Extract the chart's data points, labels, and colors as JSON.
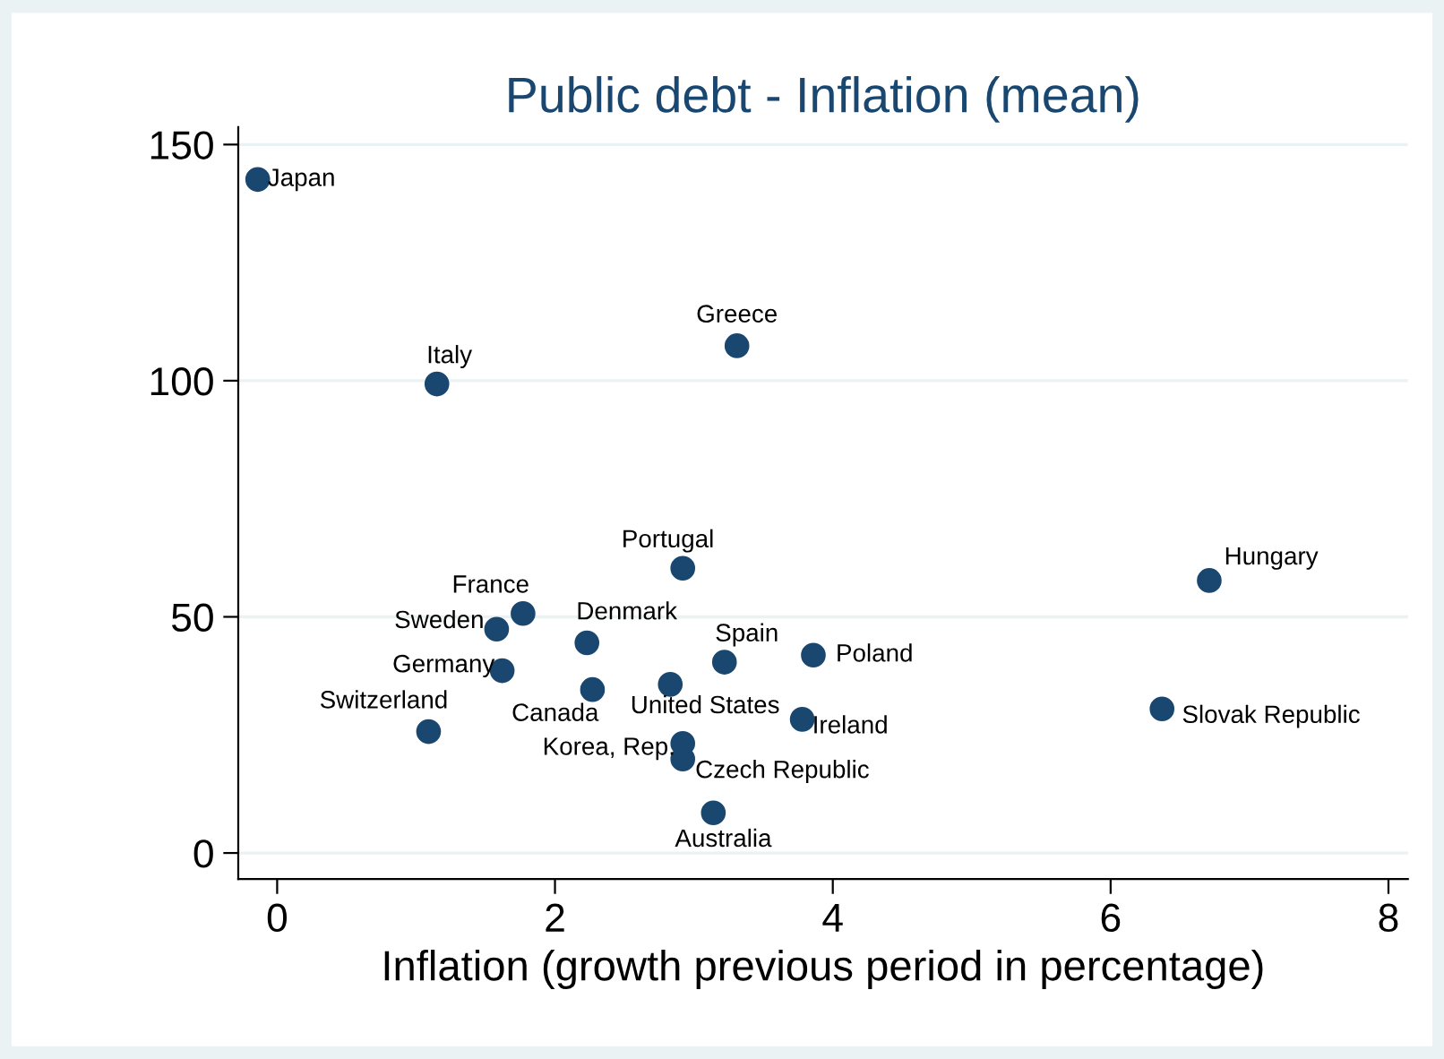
{
  "chart_data": {
    "type": "scatter",
    "title": "Public debt - Inflation (mean)",
    "xlabel": "Inflation (growth previous period in percentage)",
    "series": [
      {
        "color": "#1a476f",
        "x": [
          -0.14,
          1.15,
          3.31,
          2.92,
          6.71,
          1.77,
          1.58,
          2.23,
          3.22,
          3.86,
          1.62,
          2.27,
          2.83,
          3.78,
          1.09,
          6.37,
          2.92,
          2.92,
          3.14
        ],
        "values": [
          142.6,
          99.3,
          107.4,
          60.3,
          57.7,
          50.7,
          47.4,
          44.5,
          40.4,
          41.9,
          38.6,
          34.6,
          35.7,
          28.3,
          25.7,
          30.5,
          23.2,
          19.9,
          8.5
        ]
      }
    ],
    "annotations": [
      {
        "text": "Japan",
        "x": -0.14,
        "y": 142.6
      },
      {
        "text": "Italy",
        "x": 1.15,
        "y": 99.3
      },
      {
        "text": "Greece",
        "x": 3.31,
        "y": 107.4
      },
      {
        "text": "Portugal",
        "x": 2.92,
        "y": 60.3
      },
      {
        "text": "Hungary",
        "x": 6.71,
        "y": 57.7
      },
      {
        "text": "France",
        "x": 1.77,
        "y": 50.7
      },
      {
        "text": "Sweden",
        "x": 1.58,
        "y": 47.4
      },
      {
        "text": "Denmark",
        "x": 2.23,
        "y": 44.5
      },
      {
        "text": "Spain",
        "x": 3.22,
        "y": 40.4
      },
      {
        "text": "Poland",
        "x": 3.86,
        "y": 41.9
      },
      {
        "text": "Germany",
        "x": 1.62,
        "y": 38.6
      },
      {
        "text": "Canada",
        "x": 2.27,
        "y": 34.6
      },
      {
        "text": "United States",
        "x": 2.83,
        "y": 35.7
      },
      {
        "text": "Ireland",
        "x": 3.78,
        "y": 28.3
      },
      {
        "text": "Switzerland",
        "x": 1.09,
        "y": 25.7
      },
      {
        "text": "Slovak Republic",
        "x": 6.37,
        "y": 30.5
      },
      {
        "text": "Korea, Rep.",
        "x": 2.92,
        "y": 23.2
      },
      {
        "text": "Czech Republic",
        "x": 2.92,
        "y": 19.9
      },
      {
        "text": "Australia",
        "x": 3.14,
        "y": 8.5
      }
    ],
    "xlim": [
      -0.28,
      8.14
    ],
    "ylim": [
      -5.5,
      153.7
    ],
    "xticks": [
      0,
      2,
      4,
      6,
      8
    ],
    "yticks": [
      0,
      50,
      100,
      150
    ],
    "grid": "y",
    "marker": "circle",
    "legend": false
  }
}
